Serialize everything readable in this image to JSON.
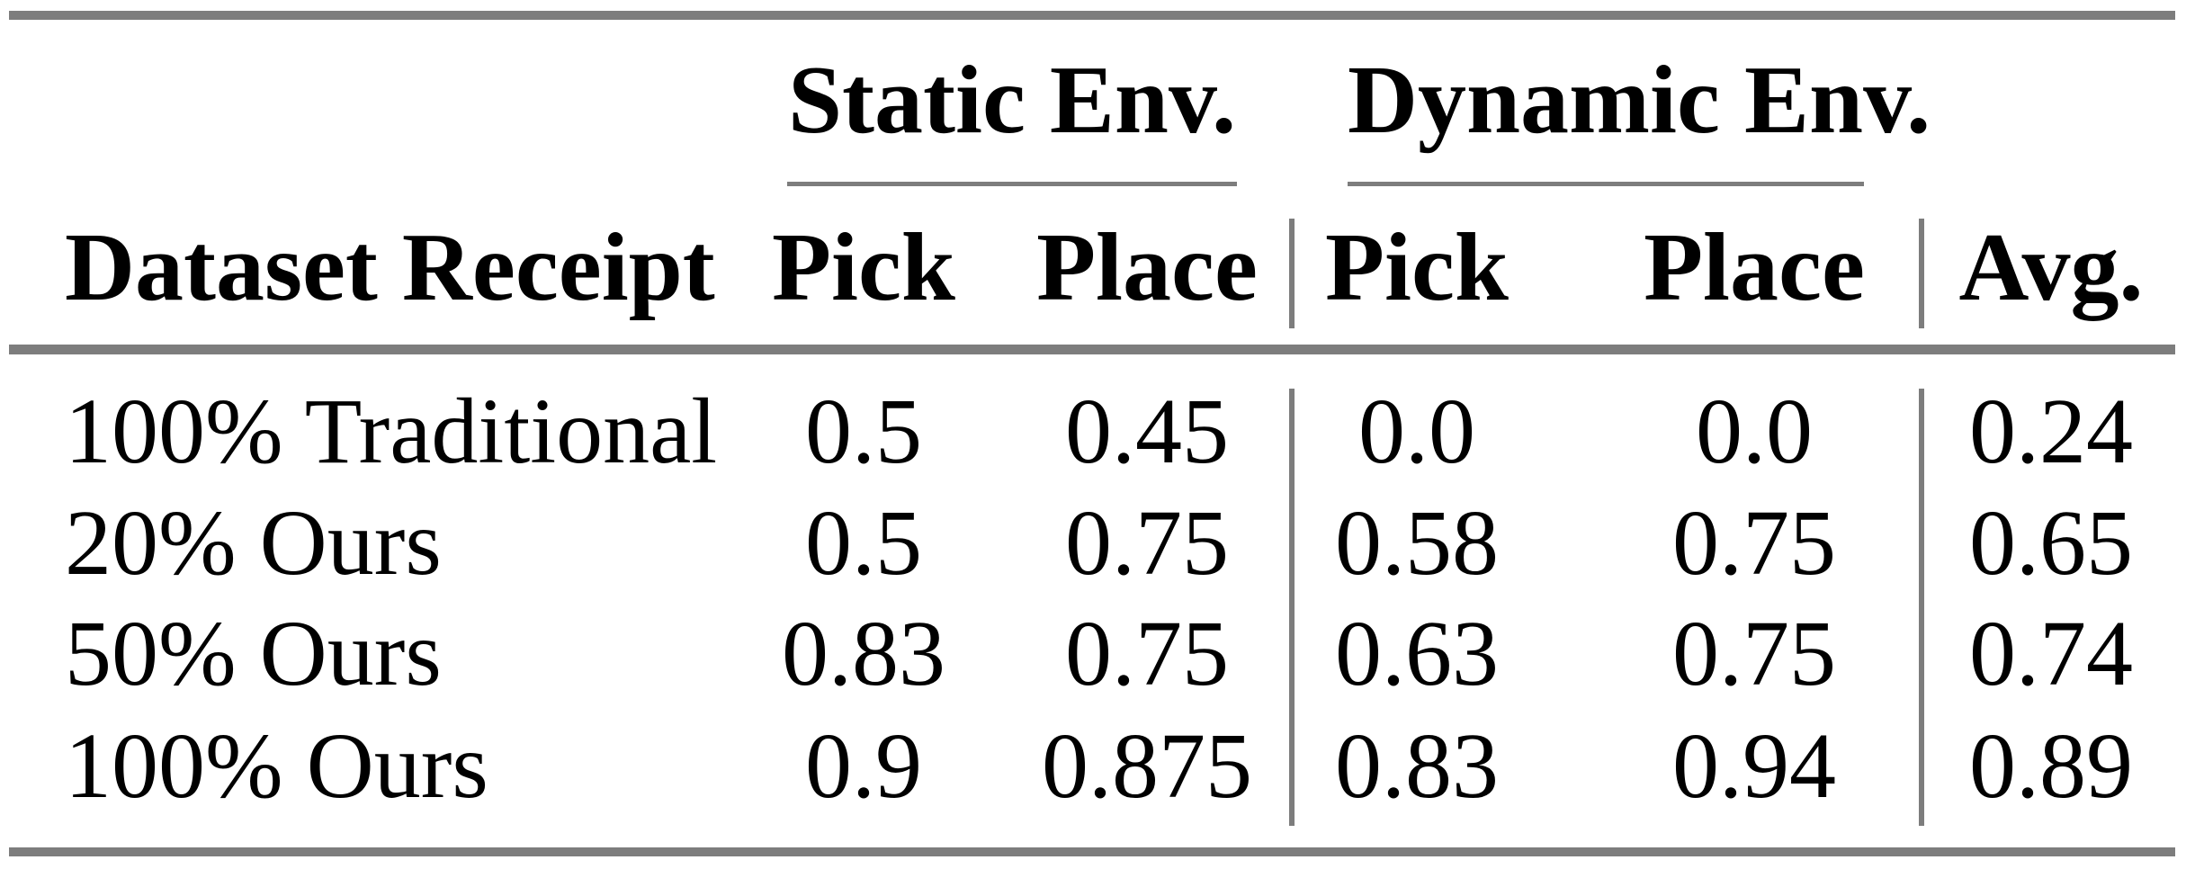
{
  "meta": {
    "background_color": "#ffffff",
    "text_color": "#000000",
    "rule_color": "#7d7d7d"
  },
  "table": {
    "row_label_header": "Dataset Receipt",
    "groups": [
      {
        "label": "Static Env.",
        "cols": [
          "Pick",
          "Place"
        ]
      },
      {
        "label": "Dynamic Env.",
        "cols": [
          "Pick",
          "Place"
        ]
      }
    ],
    "avg_header": "Avg.",
    "rows": [
      {
        "label": "100% Traditional",
        "values": [
          "0.5",
          "0.45",
          "0.0",
          "0.0",
          "0.24"
        ]
      },
      {
        "label": "20% Ours",
        "values": [
          "0.5",
          "0.75",
          "0.58",
          "0.75",
          "0.65"
        ]
      },
      {
        "label": "50% Ours",
        "values": [
          "0.83",
          "0.75",
          "0.63",
          "0.75",
          "0.74"
        ]
      },
      {
        "label": "100% Ours",
        "values": [
          "0.9",
          "0.875",
          "0.83",
          "0.94",
          "0.89"
        ]
      }
    ]
  }
}
